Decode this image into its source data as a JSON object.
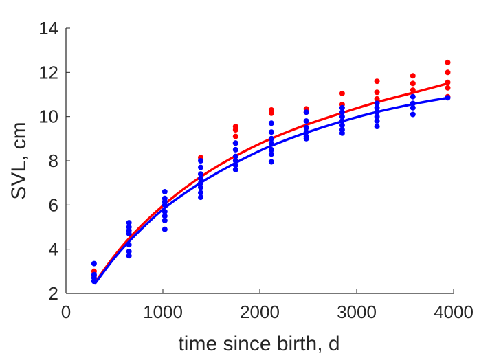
{
  "chart_data": {
    "type": "scatter",
    "title": "",
    "xlabel": "time since birth, d",
    "ylabel": "SVL, cm",
    "xlim": [
      0,
      4000
    ],
    "ylim": [
      2,
      14
    ],
    "xticks": [
      0,
      1000,
      2000,
      3000,
      4000
    ],
    "xtick_labels": [
      "0",
      "1000",
      "2000",
      "3000",
      "4000"
    ],
    "yticks": [
      2,
      4,
      6,
      8,
      10,
      12,
      14
    ],
    "ytick_labels": [
      "2",
      "4",
      "6",
      "8",
      "10",
      "12",
      "14"
    ],
    "grid": false,
    "legend": "none",
    "series": [
      {
        "color": "#ff0000",
        "kind": "points",
        "points": [
          [
            290,
            3.0
          ],
          [
            290,
            2.8
          ],
          [
            1390,
            8.15
          ],
          [
            1750,
            9.55
          ],
          [
            1750,
            9.4
          ],
          [
            1750,
            9.1
          ],
          [
            1750,
            8.8
          ],
          [
            2120,
            10.3
          ],
          [
            2120,
            10.15
          ],
          [
            2480,
            10.35
          ],
          [
            2480,
            10.2
          ],
          [
            2850,
            11.05
          ],
          [
            2850,
            10.55
          ],
          [
            3210,
            11.6
          ],
          [
            3210,
            11.1
          ],
          [
            3210,
            10.8
          ],
          [
            3580,
            11.85
          ],
          [
            3580,
            11.5
          ],
          [
            3580,
            11.2
          ],
          [
            3940,
            12.45
          ],
          [
            3940,
            12.0
          ],
          [
            3940,
            11.55
          ],
          [
            3940,
            11.3
          ],
          [
            3940,
            10.9
          ]
        ]
      },
      {
        "color": "#0000ff",
        "kind": "points",
        "points": [
          [
            290,
            3.35
          ],
          [
            290,
            2.85
          ],
          [
            290,
            2.7
          ],
          [
            290,
            2.55
          ],
          [
            650,
            5.2
          ],
          [
            650,
            5.0
          ],
          [
            650,
            4.85
          ],
          [
            650,
            4.7
          ],
          [
            650,
            4.2
          ],
          [
            650,
            3.9
          ],
          [
            650,
            3.7
          ],
          [
            1020,
            6.6
          ],
          [
            1020,
            6.3
          ],
          [
            1020,
            6.15
          ],
          [
            1020,
            6.0
          ],
          [
            1020,
            5.7
          ],
          [
            1020,
            5.5
          ],
          [
            1020,
            5.3
          ],
          [
            1020,
            4.9
          ],
          [
            1390,
            8.0
          ],
          [
            1390,
            7.7
          ],
          [
            1390,
            7.4
          ],
          [
            1390,
            7.2
          ],
          [
            1390,
            7.0
          ],
          [
            1390,
            6.8
          ],
          [
            1390,
            6.55
          ],
          [
            1390,
            6.35
          ],
          [
            1750,
            8.8
          ],
          [
            1750,
            8.5
          ],
          [
            1750,
            8.2
          ],
          [
            1750,
            8.0
          ],
          [
            1750,
            7.8
          ],
          [
            1750,
            7.6
          ],
          [
            2120,
            9.7
          ],
          [
            2120,
            9.3
          ],
          [
            2120,
            9.0
          ],
          [
            2120,
            8.8
          ],
          [
            2120,
            8.5
          ],
          [
            2120,
            8.3
          ],
          [
            2120,
            7.95
          ],
          [
            2480,
            10.2
          ],
          [
            2480,
            9.8
          ],
          [
            2480,
            9.5
          ],
          [
            2480,
            9.3
          ],
          [
            2480,
            9.1
          ],
          [
            2480,
            9.0
          ],
          [
            2850,
            10.4
          ],
          [
            2850,
            10.2
          ],
          [
            2850,
            10.0
          ],
          [
            2850,
            9.8
          ],
          [
            2850,
            9.6
          ],
          [
            2850,
            9.4
          ],
          [
            2850,
            9.25
          ],
          [
            3210,
            10.6
          ],
          [
            3210,
            10.4
          ],
          [
            3210,
            10.2
          ],
          [
            3210,
            10.0
          ],
          [
            3210,
            9.8
          ],
          [
            3210,
            9.55
          ],
          [
            3580,
            10.9
          ],
          [
            3580,
            10.6
          ],
          [
            3580,
            10.4
          ],
          [
            3580,
            10.1
          ],
          [
            3940,
            10.85
          ]
        ]
      },
      {
        "color": "#ff0000",
        "kind": "curve",
        "x": [
          300,
          500,
          700,
          1000,
          1300,
          1600,
          2000,
          2400,
          2800,
          3200,
          3600,
          3940
        ],
        "y": [
          2.5,
          3.7,
          4.72,
          5.97,
          7.0,
          7.85,
          8.77,
          9.5,
          10.1,
          10.64,
          11.1,
          11.5
        ]
      },
      {
        "color": "#0000ff",
        "kind": "curve",
        "x": [
          300,
          500,
          700,
          1000,
          1300,
          1600,
          2000,
          2400,
          2800,
          3200,
          3600,
          3940
        ],
        "y": [
          2.45,
          3.6,
          4.57,
          5.8,
          6.75,
          7.55,
          8.45,
          9.15,
          9.72,
          10.2,
          10.58,
          10.85
        ]
      }
    ]
  }
}
